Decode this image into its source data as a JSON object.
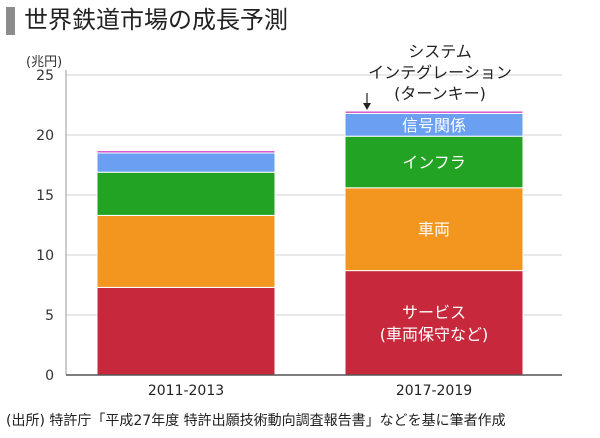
{
  "title": "世界鉄道市場の成長予測",
  "source": "(出所) 特許庁「平成27年度 特許出願技術動向調査報告書」などを基に筆者作成",
  "chart_data": {
    "type": "bar",
    "stacked": true,
    "title": "世界鉄道市場の成長予測",
    "ylabel": "(兆円)",
    "ylim": [
      0,
      25
    ],
    "yticks": [
      0,
      5,
      10,
      15,
      20,
      25
    ],
    "grid": true,
    "categories": [
      "2011-2013",
      "2017-2019"
    ],
    "series": [
      {
        "name": "サービス\n(車両保守など)",
        "color": "#c8283c",
        "values": [
          7.3,
          8.7
        ]
      },
      {
        "name": "車両",
        "color": "#f39620",
        "values": [
          6.0,
          6.9
        ]
      },
      {
        "name": "インフラ",
        "color": "#23a323",
        "values": [
          3.6,
          4.3
        ]
      },
      {
        "name": "信号関係",
        "color": "#6a9ff2",
        "values": [
          1.6,
          1.9
        ]
      },
      {
        "name": "システム\nインテグレーション\n(ターンキー)",
        "color": "#d24dc8",
        "values": [
          0.2,
          0.2
        ]
      }
    ]
  }
}
